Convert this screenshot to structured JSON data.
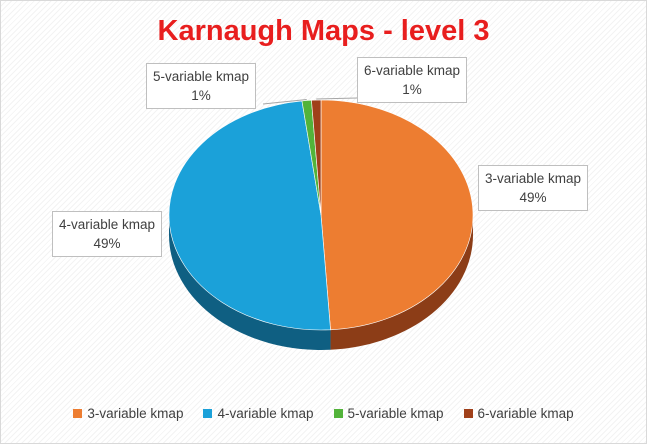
{
  "chart_data": {
    "type": "pie",
    "title": "Karnaugh Maps - level 3",
    "categories": [
      "3-variable kmap",
      "4-variable kmap",
      "5-variable kmap",
      "6-variable kmap"
    ],
    "values": [
      49,
      49,
      1,
      1
    ],
    "value_labels": [
      "49%",
      "49%",
      "1%",
      "1%"
    ],
    "colors": [
      "#ed7d31",
      "#1ba1d9",
      "#52b33a",
      "#a0401a"
    ],
    "side_colors": [
      "#8c3d17",
      "#0f5f82",
      "#2e6b21",
      "#5e2410"
    ],
    "legend_position": "bottom",
    "style": "3d"
  }
}
